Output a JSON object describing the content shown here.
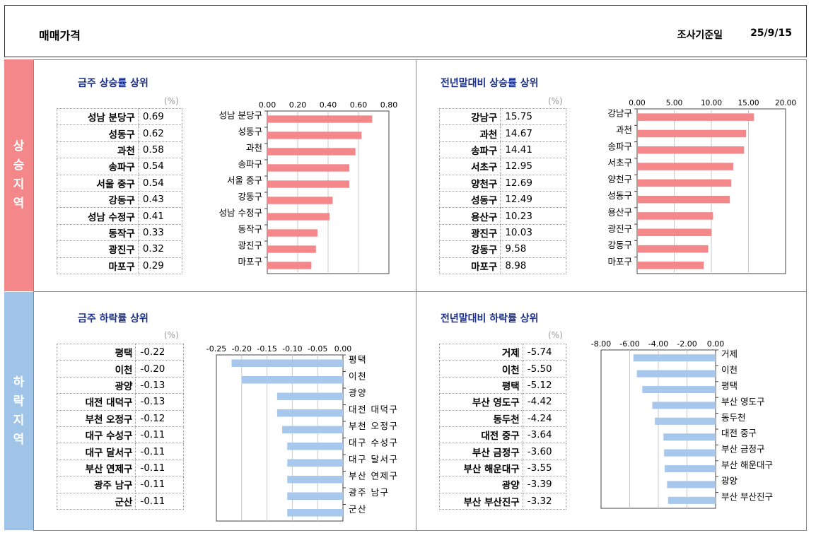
{
  "header": {
    "title": "매매가격",
    "date_label": "조사기준일",
    "date_value": "25/9/15"
  },
  "sides": {
    "rise": [
      "상",
      "승",
      "지",
      "역"
    ],
    "fall": [
      "하",
      "락",
      "지",
      "역"
    ]
  },
  "colors": {
    "rise_bar": "#f4878a",
    "fall_bar": "#a7c8ec",
    "panel_title": "#1a2f8a"
  },
  "chart_data": [
    {
      "type": "bar",
      "title": "금주 상승률 상위",
      "unit": "(%)",
      "categories": [
        "성남 분당구",
        "성동구",
        "과천",
        "송파구",
        "서울 중구",
        "강동구",
        "성남 수정구",
        "동작구",
        "광진구",
        "마포구"
      ],
      "values": [
        0.69,
        0.62,
        0.58,
        0.54,
        0.54,
        0.43,
        0.41,
        0.33,
        0.32,
        0.29
      ],
      "value_labels": [
        "0.69",
        "0.62",
        "0.58",
        "0.54",
        "0.54",
        "0.43",
        "0.41",
        "0.33",
        "0.32",
        "0.29"
      ],
      "xlim": [
        0,
        0.8
      ],
      "ticks": [
        "0.00",
        "0.20",
        "0.40",
        "0.60",
        "0.80"
      ],
      "tick_values": [
        0,
        0.2,
        0.4,
        0.6,
        0.8
      ],
      "orientation": "horizontal",
      "grid": true
    },
    {
      "type": "bar",
      "title": "전년말대비 상승률 상위",
      "unit": "(%)",
      "categories": [
        "강남구",
        "과천",
        "송파구",
        "서초구",
        "양천구",
        "성동구",
        "용산구",
        "광진구",
        "강동구",
        "마포구"
      ],
      "values": [
        15.75,
        14.67,
        14.41,
        12.95,
        12.69,
        12.49,
        10.23,
        10.03,
        9.58,
        8.98
      ],
      "value_labels": [
        "15.75",
        "14.67",
        "14.41",
        "12.95",
        "12.69",
        "12.49",
        "10.23",
        "10.03",
        "9.58",
        "8.98"
      ],
      "xlim": [
        0,
        20
      ],
      "ticks": [
        "0.00",
        "5.00",
        "10.00",
        "15.00",
        "20.00"
      ],
      "tick_values": [
        0,
        5,
        10,
        15,
        20
      ],
      "orientation": "horizontal",
      "grid": true
    },
    {
      "type": "bar",
      "title": "금주 하락률 상위",
      "unit": "(%)",
      "categories": [
        "평택",
        "이천",
        "광양",
        "대전 대덕구",
        "부천 오정구",
        "대구 수성구",
        "대구 달서구",
        "부산 연제구",
        "광주 남구",
        "군산"
      ],
      "values": [
        -0.22,
        -0.2,
        -0.13,
        -0.13,
        -0.12,
        -0.11,
        -0.11,
        -0.11,
        -0.11,
        -0.11
      ],
      "value_labels": [
        "-0.22",
        "-0.20",
        "-0.13",
        "-0.13",
        "-0.12",
        "-0.11",
        "-0.11",
        "-0.11",
        "-0.11",
        "-0.11"
      ],
      "xlim": [
        -0.25,
        0
      ],
      "ticks": [
        "-0.25",
        "-0.20",
        "-0.15",
        "-0.10",
        "-0.05",
        "0.00"
      ],
      "tick_values": [
        -0.25,
        -0.2,
        -0.15,
        -0.1,
        -0.05,
        0
      ],
      "orientation": "horizontal",
      "grid": true
    },
    {
      "type": "bar",
      "title": "전년말대비 하락률 상위",
      "unit": "(%)",
      "categories": [
        "거제",
        "이천",
        "평택",
        "부산 영도구",
        "동두천",
        "대전 중구",
        "부산 금정구",
        "부산 해운대구",
        "광양",
        "부산 부산진구"
      ],
      "values": [
        -5.74,
        -5.5,
        -5.12,
        -4.42,
        -4.24,
        -3.64,
        -3.6,
        -3.55,
        -3.39,
        -3.32
      ],
      "value_labels": [
        "-5.74",
        "-5.50",
        "-5.12",
        "-4.42",
        "-4.24",
        "-3.64",
        "-3.60",
        "-3.55",
        "-3.39",
        "-3.32"
      ],
      "xlim": [
        -8,
        0
      ],
      "ticks": [
        "-8.00",
        "-6.00",
        "-4.00",
        "-2.00",
        "0.00"
      ],
      "tick_values": [
        -8,
        -6,
        -4,
        -2,
        0
      ],
      "orientation": "horizontal",
      "grid": true
    }
  ]
}
